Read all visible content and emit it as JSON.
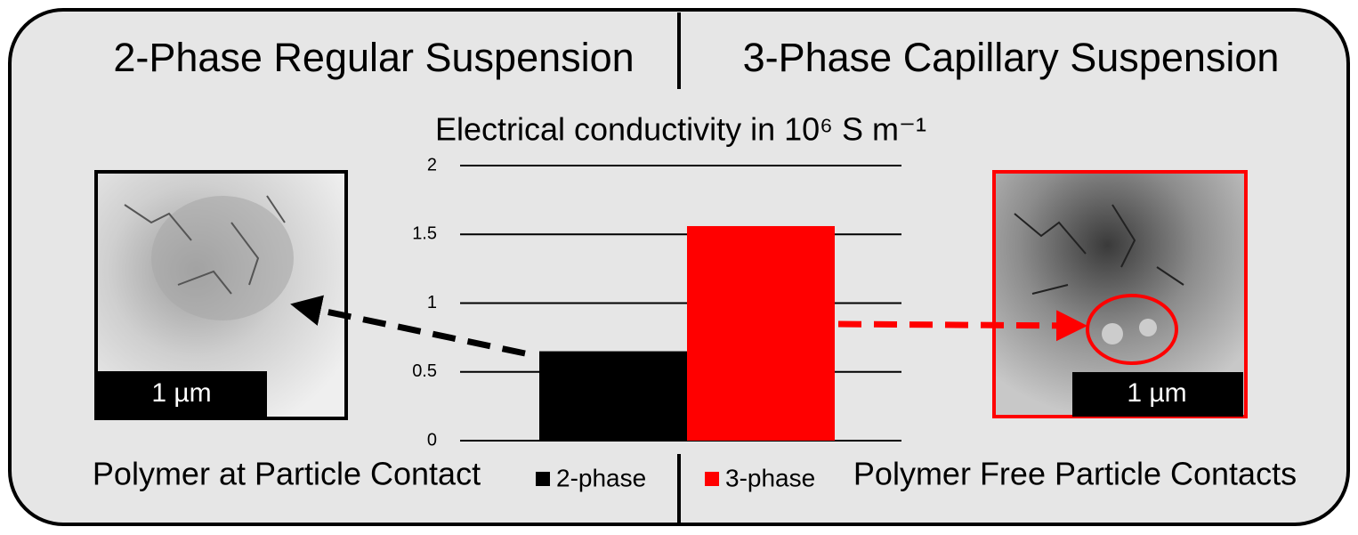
{
  "headers": {
    "left": "2-Phase Regular Suspension",
    "right": "3-Phase Capillary Suspension"
  },
  "captions": {
    "left": "Polymer at Particle Contact",
    "right": "Polymer Free Particle Contacts"
  },
  "scale_bars": {
    "left": "1 µm",
    "right": "1 µm"
  },
  "chart_data": {
    "type": "bar",
    "title": "Electrical conductivity in 10⁶ S m⁻¹",
    "series": [
      {
        "name": "2-phase",
        "color": "#000000",
        "values": [
          0.65
        ]
      },
      {
        "name": "3-phase",
        "color": "#ff0000",
        "values": [
          1.56
        ]
      }
    ],
    "ylim": [
      0,
      2
    ],
    "yticks": [
      0,
      0.5,
      1,
      1.5,
      2
    ],
    "grid": true
  }
}
